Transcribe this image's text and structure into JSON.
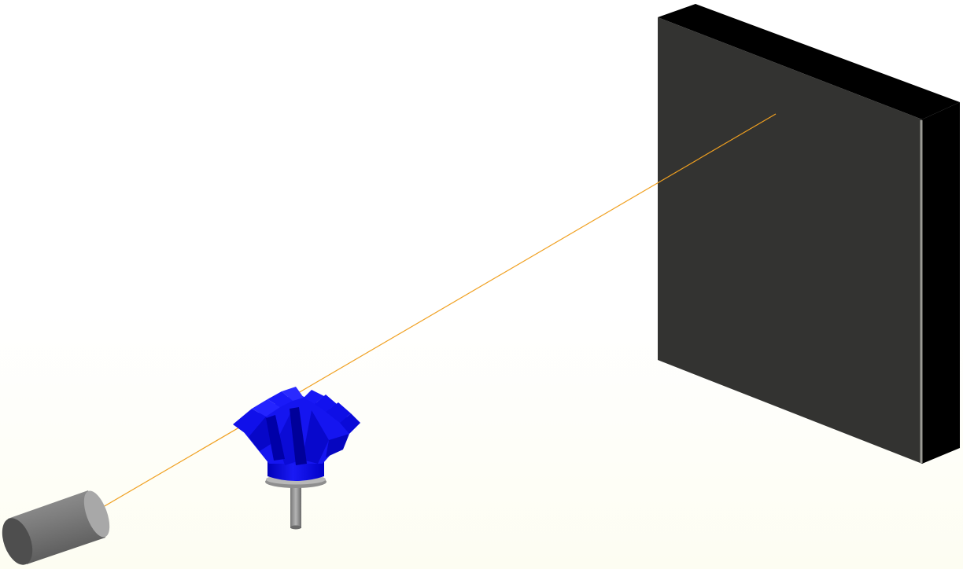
{
  "scene": {
    "objects": [
      {
        "id": "laser",
        "label": "laser-source",
        "color": "#7a7a7a"
      },
      {
        "id": "gear",
        "label": "bevel-gear",
        "color": "#1111ee"
      },
      {
        "id": "screen",
        "label": "projection-screen",
        "color": "#333333"
      },
      {
        "id": "beam",
        "label": "laser-beam",
        "color": "#f0a020"
      }
    ],
    "colors": {
      "background": "#ffffff",
      "floor_tint": "#fefef6",
      "screen_face": "#333333",
      "screen_side": "#000000",
      "screen_edge": "#8a8a84",
      "gear_blue": "#1111ee",
      "gear_dark": "#0000a0",
      "stand_gray": "#9a9a9a",
      "beam": "#f0a020"
    }
  }
}
